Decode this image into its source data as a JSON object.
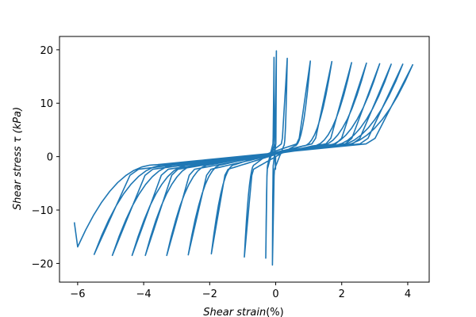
{
  "chart_data": {
    "type": "line",
    "title": "",
    "xlabel": "Shear strain",
    "xlabel_unit": "(%)",
    "ylabel": "Shear stress τ (kPa)",
    "xlim": [
      -6.55,
      4.65
    ],
    "ylim": [
      -23.5,
      22.5
    ],
    "xticks": [
      -6,
      -4,
      -2,
      0,
      2,
      4
    ],
    "yticks": [
      -20,
      -10,
      0,
      10,
      20
    ],
    "xtick_labels": [
      "−6",
      "−4",
      "−2",
      "0",
      "2",
      "4"
    ],
    "ytick_labels": [
      "−20",
      "−10",
      "0",
      "10",
      "20"
    ],
    "grid": false,
    "legend": "none",
    "colors": {
      "series": "#1f77b4",
      "axes": "#000000",
      "background": "#ffffff"
    },
    "cycles": [
      {
        "pos_peak": [
          -0.05,
          18.6
        ],
        "neg_peak": [
          -0.3,
          -19.0
        ]
      },
      {
        "pos_peak": [
          0.02,
          19.8
        ],
        "neg_peak": [
          -0.1,
          -20.3
        ]
      },
      {
        "pos_peak": [
          0.35,
          18.4
        ],
        "neg_peak": [
          -0.95,
          -18.8
        ]
      },
      {
        "pos_peak": [
          1.05,
          17.9
        ],
        "neg_peak": [
          -1.95,
          -18.2
        ]
      },
      {
        "pos_peak": [
          1.7,
          17.8
        ],
        "neg_peak": [
          -2.65,
          -18.4
        ]
      },
      {
        "pos_peak": [
          2.3,
          17.6
        ],
        "neg_peak": [
          -3.3,
          -18.5
        ]
      },
      {
        "pos_peak": [
          2.75,
          17.5
        ],
        "neg_peak": [
          -3.95,
          -18.5
        ]
      },
      {
        "pos_peak": [
          3.15,
          17.4
        ],
        "neg_peak": [
          -4.35,
          -18.5
        ]
      },
      {
        "pos_peak": [
          3.5,
          17.3
        ],
        "neg_peak": [
          -4.95,
          -18.5
        ]
      },
      {
        "pos_peak": [
          3.85,
          17.3
        ],
        "neg_peak": [
          -5.5,
          -18.3
        ]
      },
      {
        "pos_peak": [
          4.15,
          17.2
        ],
        "neg_peak": [
          -6.0,
          -16.9
        ]
      }
    ],
    "end_point": [
      -6.1,
      -12.3
    ]
  }
}
